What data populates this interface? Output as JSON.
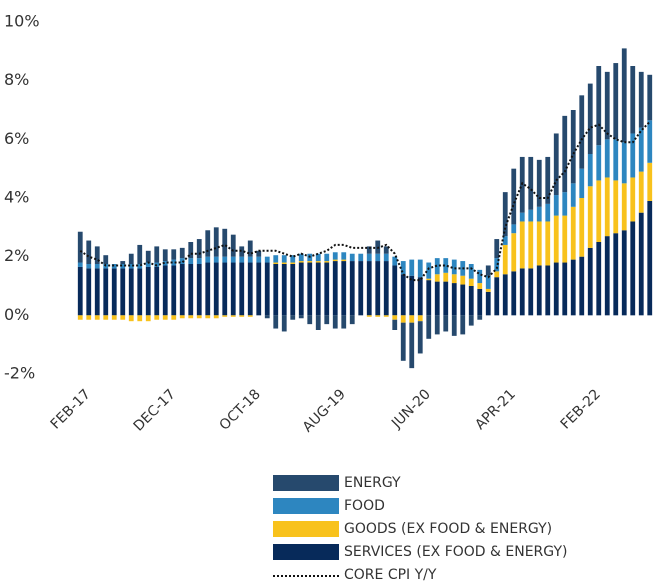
{
  "chart_data": {
    "type": "bar",
    "stacked": true,
    "categories": [
      "FEB-17",
      null,
      null,
      null,
      null,
      null,
      null,
      null,
      null,
      null,
      "DEC-17",
      null,
      null,
      null,
      null,
      null,
      null,
      null,
      null,
      null,
      "OCT-18",
      null,
      null,
      null,
      null,
      null,
      null,
      null,
      null,
      null,
      "AUG-19",
      null,
      null,
      null,
      null,
      null,
      null,
      null,
      null,
      null,
      "JUN-20",
      null,
      null,
      null,
      null,
      null,
      null,
      null,
      null,
      null,
      "APR-21",
      null,
      null,
      null,
      null,
      null,
      null,
      null,
      null,
      null,
      "FEB-22",
      null,
      null,
      null,
      null,
      null,
      null,
      null
    ],
    "ylim": [
      -2,
      10
    ],
    "yticks": [
      {
        "value": -2,
        "label": "-2%"
      },
      {
        "value": 0,
        "label": "0%"
      },
      {
        "value": 2,
        "label": "2%"
      },
      {
        "value": 4,
        "label": "4%"
      },
      {
        "value": 6,
        "label": "6%"
      },
      {
        "value": 8,
        "label": "8%"
      },
      {
        "value": 10,
        "label": "10%"
      }
    ],
    "series": [
      {
        "name": "ENERGY",
        "kind": "bar",
        "color": "#26496d",
        "values": [
          1.05,
          0.8,
          0.6,
          0.3,
          0.0,
          0.1,
          0.35,
          0.65,
          0.4,
          0.55,
          0.4,
          0.35,
          0.35,
          0.55,
          0.65,
          0.9,
          1.0,
          0.95,
          0.75,
          0.35,
          0.55,
          0.2,
          -0.1,
          -0.45,
          -0.55,
          -0.15,
          -0.1,
          -0.3,
          -0.5,
          -0.3,
          -0.45,
          -0.45,
          -0.3,
          0.0,
          0.25,
          0.45,
          0.25,
          -0.35,
          -1.3,
          -1.55,
          -1.1,
          -0.8,
          -0.65,
          -0.55,
          -0.7,
          -0.65,
          -0.35,
          -0.15,
          0.35,
          0.65,
          1.5,
          1.9,
          1.9,
          1.8,
          1.6,
          1.6,
          2.1,
          2.6,
          2.5,
          2.5,
          2.4,
          2.7,
          2.3,
          2.6,
          3.2,
          2.3,
          1.9,
          1.55
        ]
      },
      {
        "name": "FOOD",
        "kind": "bar",
        "color": "#2d86c0",
        "values": [
          0.15,
          0.15,
          0.15,
          0.15,
          0.15,
          0.15,
          0.15,
          0.15,
          0.15,
          0.15,
          0.15,
          0.2,
          0.2,
          0.2,
          0.2,
          0.2,
          0.2,
          0.2,
          0.2,
          0.2,
          0.2,
          0.2,
          0.2,
          0.25,
          0.25,
          0.25,
          0.25,
          0.25,
          0.25,
          0.25,
          0.25,
          0.25,
          0.25,
          0.25,
          0.25,
          0.25,
          0.25,
          0.3,
          0.45,
          0.55,
          0.6,
          0.55,
          0.55,
          0.5,
          0.5,
          0.5,
          0.5,
          0.45,
          0.45,
          0.45,
          0.3,
          0.3,
          0.3,
          0.4,
          0.5,
          0.6,
          0.7,
          0.8,
          0.8,
          1.0,
          1.1,
          1.2,
          1.3,
          1.4,
          1.4,
          1.5,
          1.5,
          1.45
        ]
      },
      {
        "name": "GOODS (EX FOOD & ENERGY)",
        "kind": "bar",
        "color": "#f8c21c",
        "values": [
          -0.15,
          -0.15,
          -0.15,
          -0.15,
          -0.15,
          -0.15,
          -0.2,
          -0.2,
          -0.2,
          -0.15,
          -0.15,
          -0.15,
          -0.1,
          -0.1,
          -0.1,
          -0.1,
          -0.1,
          -0.05,
          -0.05,
          -0.05,
          -0.05,
          0.0,
          0.0,
          0.05,
          0.05,
          0.05,
          0.05,
          0.05,
          0.05,
          0.05,
          0.05,
          0.05,
          0.0,
          0.0,
          -0.05,
          -0.05,
          -0.05,
          -0.15,
          -0.25,
          -0.25,
          -0.2,
          0.05,
          0.25,
          0.3,
          0.3,
          0.3,
          0.25,
          0.2,
          0.1,
          0.2,
          1.0,
          1.3,
          1.6,
          1.6,
          1.5,
          1.5,
          1.6,
          1.6,
          1.8,
          2.0,
          2.1,
          2.1,
          2.0,
          1.8,
          1.6,
          1.5,
          1.4,
          1.3
        ]
      },
      {
        "name": "SERVICES (EX FOOD & ENERGY)",
        "kind": "bar",
        "color": "#072a5a",
        "values": [
          1.65,
          1.6,
          1.6,
          1.6,
          1.6,
          1.6,
          1.6,
          1.6,
          1.65,
          1.65,
          1.7,
          1.7,
          1.75,
          1.75,
          1.75,
          1.8,
          1.8,
          1.8,
          1.8,
          1.8,
          1.8,
          1.8,
          1.8,
          1.75,
          1.75,
          1.75,
          1.8,
          1.8,
          1.8,
          1.8,
          1.85,
          1.85,
          1.85,
          1.85,
          1.85,
          1.85,
          1.85,
          1.7,
          1.4,
          1.35,
          1.3,
          1.2,
          1.15,
          1.15,
          1.1,
          1.05,
          1.0,
          0.9,
          0.8,
          1.3,
          1.4,
          1.5,
          1.6,
          1.6,
          1.7,
          1.7,
          1.8,
          1.8,
          1.9,
          2.0,
          2.3,
          2.5,
          2.7,
          2.8,
          2.9,
          3.2,
          3.5,
          3.9
        ]
      },
      {
        "name": "CORE CPI Y/Y",
        "kind": "line",
        "color": "#111111",
        "dash": "2 2",
        "values": [
          2.2,
          2.0,
          1.9,
          1.7,
          1.7,
          1.7,
          1.7,
          1.7,
          1.8,
          1.7,
          1.8,
          1.8,
          1.8,
          2.1,
          2.1,
          2.2,
          2.3,
          2.4,
          2.2,
          2.2,
          2.1,
          2.2,
          2.2,
          2.2,
          2.1,
          2.0,
          2.1,
          2.0,
          2.1,
          2.2,
          2.4,
          2.4,
          2.3,
          2.3,
          2.3,
          2.3,
          2.4,
          2.1,
          1.4,
          1.2,
          1.2,
          1.6,
          1.7,
          1.7,
          1.6,
          1.6,
          1.6,
          1.4,
          1.3,
          1.6,
          3.0,
          3.8,
          4.5,
          4.3,
          4.0,
          4.0,
          4.6,
          4.9,
          5.5,
          6.0,
          6.4,
          6.5,
          6.2,
          6.0,
          5.9,
          5.9,
          6.3,
          6.6
        ]
      }
    ]
  }
}
